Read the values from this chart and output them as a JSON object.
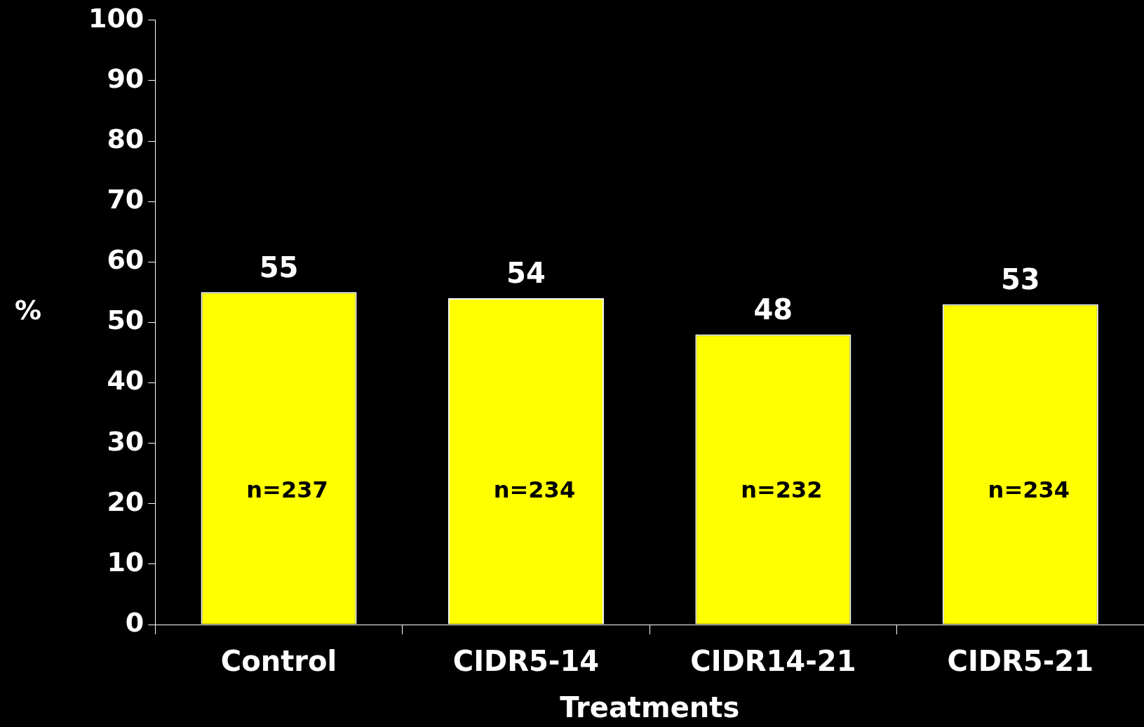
{
  "chart_data": {
    "type": "bar",
    "categories": [
      "Control",
      "CIDR5-14",
      "CIDR14-21",
      "CIDR5-21"
    ],
    "values": [
      55,
      54,
      48,
      53
    ],
    "color": "#ffff00",
    "xlabel": "Treatments",
    "ylabel": "%",
    "ylim": [
      0,
      100
    ],
    "yticks": [
      0,
      10,
      20,
      30,
      40,
      50,
      60,
      70,
      80,
      90,
      100
    ],
    "data_labels": true,
    "grid": false,
    "legend": false,
    "annotations": [
      "n=237",
      "n=234",
      "n=232",
      "n=234"
    ]
  }
}
